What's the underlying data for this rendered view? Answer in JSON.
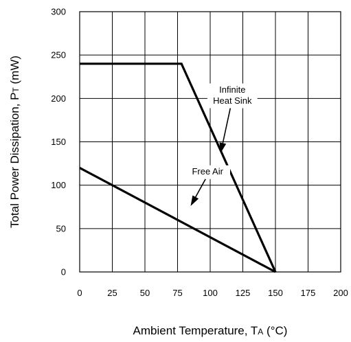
{
  "chart_data": {
    "type": "line",
    "title": "",
    "xlabel": {
      "main": "Ambient Temperature, T",
      "subscript": "A",
      "unit": " (°C)"
    },
    "ylabel": {
      "main": "Total Power Dissipation, P",
      "subscript": "T",
      "unit": " (mW)"
    },
    "xlim": [
      0,
      200
    ],
    "ylim": [
      0,
      300
    ],
    "x_ticks": [
      0,
      25,
      50,
      75,
      100,
      125,
      150,
      175,
      200
    ],
    "y_ticks": [
      0,
      50,
      100,
      150,
      200,
      250,
      300
    ],
    "grid": true,
    "legend": "none",
    "series": [
      {
        "name": "Infinite Heat Sink",
        "x": [
          0,
          78,
          150
        ],
        "y": [
          240,
          240,
          0
        ]
      },
      {
        "name": "Free Air",
        "x": [
          0,
          150
        ],
        "y": [
          120,
          0
        ]
      }
    ],
    "annotations": [
      {
        "text_lines": [
          "Infinite",
          "Heat Sink"
        ],
        "series": "Infinite Heat Sink",
        "text_at": [
          117,
          203
        ],
        "arrow_to": [
          108,
          137
        ]
      },
      {
        "text_lines": [
          "Free Air"
        ],
        "series": "Free Air",
        "text_at": [
          98,
          115
        ],
        "arrow_to": [
          85,
          76
        ]
      }
    ]
  }
}
